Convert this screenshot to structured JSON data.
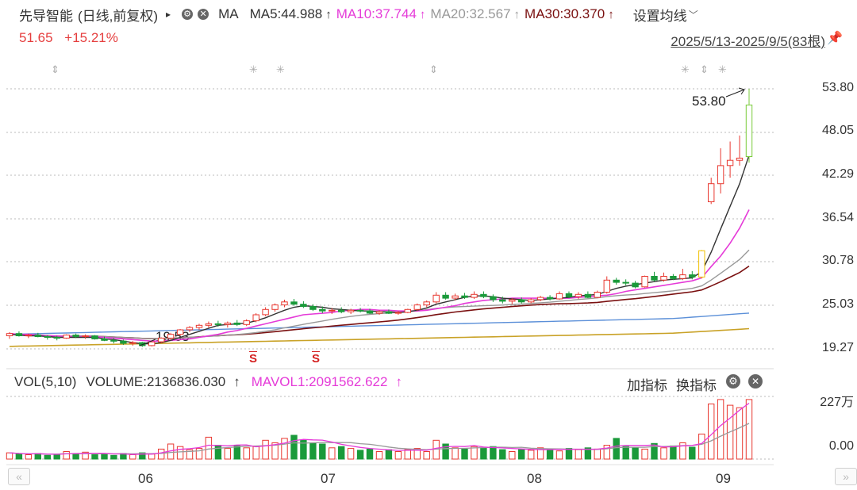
{
  "header": {
    "stock_name": "先导智能",
    "period": "(日线,前复权)",
    "ma_label": "MA",
    "ma_settings": "设置均线",
    "ma5": "MA5:44.988",
    "ma10": "MA10:37.744",
    "ma20": "MA20:32.567",
    "ma30": "MA30:30.370",
    "up_arrow": "↑",
    "chevron": "﹀",
    "tri": "▸"
  },
  "quote": {
    "price": "51.65",
    "change_pct": "+15.21%"
  },
  "range": {
    "text": "2025/5/13-2025/9/5(83根)"
  },
  "colors": {
    "up": "#e8372f",
    "down": "#1a9a3a",
    "ma5": "#333333",
    "ma10": "#e53ad8",
    "ma20": "#999999",
    "ma30": "#7a1010",
    "ma60": "#5b8fd8",
    "ma120": "#c9a227",
    "grid": "#bbbbbb",
    "last_candle": "#7acb3b",
    "yellow_candle": "#f0c000"
  },
  "price_axis": {
    "ticks": [
      "53.80",
      "48.05",
      "42.29",
      "36.54",
      "30.78",
      "25.03",
      "19.27"
    ],
    "max_label": "53.80",
    "min_label": "19.53"
  },
  "volume": {
    "title": "VOL(5,10)",
    "volume_text": "VOLUME:2136836.030",
    "mavol1": "MAVOL1:2091562.622",
    "up_arrow": "↑",
    "add_indicator": "加指标",
    "switch_indicator": "换指标",
    "ticks": [
      "227万",
      "0.00"
    ]
  },
  "x_axis": {
    "labels": [
      "06",
      "07",
      "08",
      "09"
    ]
  },
  "markers": {
    "s_marker": "S"
  },
  "chart_data": {
    "type": "candlestick",
    "candles": [
      [
        21.0,
        21.5,
        20.6,
        21.3
      ],
      [
        21.3,
        21.6,
        20.9,
        21.0
      ],
      [
        21.0,
        21.3,
        20.7,
        21.1
      ],
      [
        21.1,
        21.4,
        20.8,
        20.9
      ],
      [
        20.9,
        21.1,
        20.5,
        20.8
      ],
      [
        20.8,
        21.0,
        20.4,
        20.7
      ],
      [
        20.7,
        21.2,
        20.6,
        21.1
      ],
      [
        21.1,
        21.3,
        20.7,
        20.9
      ],
      [
        20.9,
        21.2,
        20.6,
        21.0
      ],
      [
        21.0,
        21.1,
        20.5,
        20.6
      ],
      [
        20.6,
        20.9,
        20.3,
        20.4
      ],
      [
        20.4,
        20.7,
        20.0,
        20.3
      ],
      [
        20.3,
        20.5,
        19.8,
        20.0
      ],
      [
        20.0,
        20.3,
        19.7,
        20.1
      ],
      [
        20.1,
        20.2,
        19.53,
        19.7
      ],
      [
        19.7,
        20.3,
        19.6,
        20.2
      ],
      [
        20.2,
        20.8,
        20.0,
        20.7
      ],
      [
        20.7,
        21.4,
        20.5,
        21.2
      ],
      [
        21.2,
        21.9,
        21.0,
        21.8
      ],
      [
        21.8,
        22.3,
        21.5,
        22.1
      ],
      [
        22.1,
        22.6,
        21.8,
        22.4
      ],
      [
        22.4,
        22.9,
        22.1,
        22.6
      ],
      [
        22.6,
        23.0,
        22.2,
        22.5
      ],
      [
        22.5,
        22.9,
        22.1,
        22.7
      ],
      [
        22.7,
        23.1,
        22.3,
        22.5
      ],
      [
        22.5,
        23.2,
        22.3,
        23.0
      ],
      [
        23.0,
        24.0,
        22.8,
        23.8
      ],
      [
        23.8,
        24.8,
        23.6,
        24.5
      ],
      [
        24.5,
        25.3,
        24.2,
        25.1
      ],
      [
        25.1,
        25.8,
        24.8,
        25.5
      ],
      [
        25.5,
        25.9,
        25.0,
        25.2
      ],
      [
        25.2,
        25.6,
        24.7,
        24.9
      ],
      [
        24.9,
        25.2,
        24.3,
        24.5
      ],
      [
        24.5,
        24.9,
        24.0,
        24.3
      ],
      [
        24.3,
        24.7,
        23.9,
        24.4
      ],
      [
        24.4,
        24.8,
        24.0,
        24.2
      ],
      [
        24.2,
        24.6,
        23.9,
        24.4
      ],
      [
        24.4,
        24.7,
        24.1,
        24.3
      ],
      [
        24.3,
        24.6,
        23.9,
        24.0
      ],
      [
        24.0,
        24.4,
        23.8,
        24.2
      ],
      [
        24.2,
        24.5,
        23.9,
        24.0
      ],
      [
        24.0,
        24.3,
        23.8,
        24.1
      ],
      [
        24.1,
        24.6,
        24.0,
        24.5
      ],
      [
        24.5,
        25.3,
        24.3,
        25.1
      ],
      [
        25.1,
        25.7,
        24.8,
        25.5
      ],
      [
        25.5,
        26.8,
        25.3,
        26.4
      ],
      [
        26.4,
        26.8,
        25.8,
        26.0
      ],
      [
        26.0,
        26.6,
        25.7,
        26.3
      ],
      [
        26.3,
        26.7,
        25.9,
        26.1
      ],
      [
        26.1,
        26.9,
        25.9,
        26.5
      ],
      [
        26.5,
        26.9,
        26.0,
        26.2
      ],
      [
        26.2,
        26.5,
        25.5,
        25.8
      ],
      [
        25.8,
        26.2,
        25.3,
        25.6
      ],
      [
        25.6,
        26.0,
        25.2,
        25.8
      ],
      [
        25.8,
        26.1,
        25.3,
        25.5
      ],
      [
        25.5,
        26.0,
        25.3,
        25.8
      ],
      [
        25.8,
        26.3,
        25.6,
        26.1
      ],
      [
        26.1,
        26.4,
        25.7,
        25.9
      ],
      [
        25.9,
        26.9,
        25.8,
        26.6
      ],
      [
        26.6,
        26.9,
        26.0,
        26.2
      ],
      [
        26.2,
        26.8,
        25.9,
        26.5
      ],
      [
        26.5,
        26.9,
        26.0,
        26.1
      ],
      [
        26.1,
        27.0,
        26.0,
        26.8
      ],
      [
        26.8,
        28.9,
        26.6,
        28.4
      ],
      [
        28.4,
        28.7,
        27.8,
        28.1
      ],
      [
        28.1,
        28.5,
        27.7,
        28.0
      ],
      [
        28.0,
        28.3,
        27.3,
        27.5
      ],
      [
        27.5,
        29.0,
        27.4,
        28.9
      ],
      [
        28.9,
        29.5,
        28.2,
        28.4
      ],
      [
        28.4,
        29.4,
        28.2,
        28.9
      ],
      [
        28.9,
        29.2,
        28.4,
        28.6
      ],
      [
        28.6,
        29.9,
        28.4,
        29.1
      ],
      [
        29.1,
        29.6,
        28.5,
        28.8
      ],
      [
        28.8,
        32.4,
        28.6,
        32.3
      ],
      [
        38.8,
        42.0,
        38.5,
        41.2
      ],
      [
        41.2,
        45.9,
        39.9,
        43.6
      ],
      [
        43.6,
        46.8,
        42.0,
        44.3
      ],
      [
        44.3,
        47.6,
        43.6,
        44.6
      ],
      [
        44.8,
        53.8,
        44.0,
        51.65
      ]
    ],
    "volumes": [
      0.1,
      0.08,
      0.07,
      0.09,
      0.06,
      0.08,
      0.12,
      0.09,
      0.11,
      0.07,
      0.08,
      0.06,
      0.09,
      0.07,
      0.1,
      0.08,
      0.16,
      0.24,
      0.2,
      0.15,
      0.17,
      0.35,
      0.22,
      0.17,
      0.21,
      0.18,
      0.2,
      0.3,
      0.26,
      0.33,
      0.38,
      0.3,
      0.26,
      0.24,
      0.18,
      0.2,
      0.17,
      0.14,
      0.16,
      0.12,
      0.15,
      0.12,
      0.15,
      0.17,
      0.12,
      0.3,
      0.24,
      0.18,
      0.16,
      0.2,
      0.18,
      0.2,
      0.15,
      0.12,
      0.16,
      0.14,
      0.18,
      0.16,
      0.13,
      0.17,
      0.15,
      0.18,
      0.16,
      0.22,
      0.33,
      0.2,
      0.18,
      0.16,
      0.25,
      0.18,
      0.21,
      0.26,
      0.19,
      0.4,
      0.88,
      0.95,
      0.86,
      0.82,
      0.95
    ],
    "ma5": [
      21.2,
      21.1,
      21.0,
      21.0,
      20.9,
      20.8,
      20.8,
      20.8,
      20.8,
      20.8,
      20.6,
      20.5,
      20.3,
      20.1,
      19.95,
      19.95,
      20.1,
      20.4,
      20.8,
      21.2,
      21.6,
      22.0,
      22.4,
      22.5,
      22.6,
      22.7,
      23.0,
      23.4,
      23.9,
      24.4,
      24.8,
      25.0,
      24.9,
      24.8,
      24.6,
      24.5,
      24.4,
      24.3,
      24.3,
      24.2,
      24.2,
      24.1,
      24.2,
      24.4,
      24.7,
      25.2,
      25.5,
      25.8,
      26.1,
      26.3,
      26.3,
      26.2,
      26.0,
      25.9,
      25.8,
      25.7,
      25.8,
      25.9,
      26.0,
      26.1,
      26.3,
      26.4,
      26.5,
      26.9,
      27.3,
      27.6,
      27.8,
      28.0,
      28.2,
      28.4,
      28.5,
      28.6,
      28.7,
      29.5,
      32.1,
      35.2,
      38.2,
      41.2,
      44.988
    ],
    "ma10": [
      21.3,
      21.2,
      21.2,
      21.1,
      21.0,
      21.0,
      20.9,
      20.9,
      20.9,
      20.9,
      20.8,
      20.7,
      20.6,
      20.5,
      20.4,
      20.3,
      20.3,
      20.4,
      20.5,
      20.6,
      20.8,
      21.0,
      21.2,
      21.5,
      21.7,
      22.0,
      22.3,
      22.6,
      22.9,
      23.2,
      23.5,
      23.8,
      23.9,
      24.0,
      24.1,
      24.3,
      24.4,
      24.5,
      24.5,
      24.4,
      24.4,
      24.3,
      24.3,
      24.3,
      24.4,
      24.6,
      24.8,
      25.0,
      25.3,
      25.5,
      25.7,
      25.8,
      25.9,
      26.0,
      26.0,
      26.0,
      26.0,
      26.0,
      26.0,
      26.0,
      26.1,
      26.2,
      26.3,
      26.4,
      26.6,
      26.9,
      27.1,
      27.3,
      27.5,
      27.7,
      27.9,
      28.1,
      28.3,
      28.7,
      30.2,
      31.6,
      33.3,
      35.3,
      37.744
    ]
  }
}
